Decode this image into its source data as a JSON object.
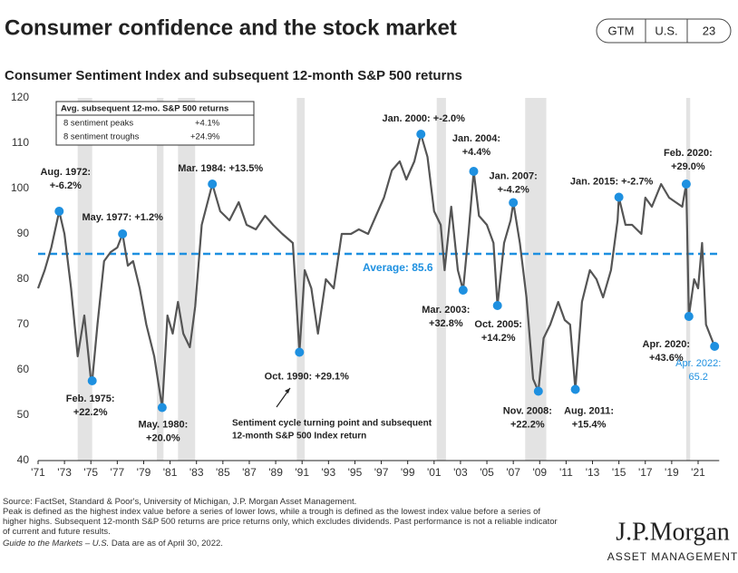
{
  "page": {
    "title": "Consumer confidence and the stock market",
    "tabs": [
      "GTM",
      "U.S.",
      "23"
    ],
    "footnotes": [
      "Source: FactSet, Standard & Poor's, University of Michigan, J.P. Morgan Asset Management.",
      "Peak is defined as the highest index value before a series of lower lows, while a trough is defined as the lowest index value before a series of",
      "higher highs. Subsequent 12-month S&P 500 returns are price returns only, which excludes dividends. Past performance is not a reliable indicator",
      "of current and future results."
    ],
    "guide": "Guide to the Markets – U.S.",
    "asof": " Data are as of April 30, 2022.",
    "logo": "J.P.Morgan",
    "logo_sub": "ASSET MANAGEMENT"
  },
  "chart_data": {
    "type": "line",
    "title": "Consumer Sentiment Index and subsequent 12-month S&P 500 returns",
    "color": "#555555",
    "point_color": "#1e90e0",
    "x": [
      1971.0,
      1971.5,
      1972.0,
      1972.6,
      1973.0,
      1973.5,
      1974.0,
      1974.5,
      1975.0,
      1975.1,
      1975.5,
      1976.0,
      1976.5,
      1977.0,
      1977.4,
      1977.8,
      1978.2,
      1978.7,
      1979.2,
      1979.8,
      1980.4,
      1980.8,
      1981.2,
      1981.6,
      1982.0,
      1982.5,
      1982.9,
      1983.4,
      1984.2,
      1984.8,
      1985.5,
      1986.2,
      1986.8,
      1987.5,
      1988.2,
      1988.8,
      1989.5,
      1990.3,
      1990.8,
      1991.2,
      1991.7,
      1992.2,
      1992.8,
      1993.4,
      1994.0,
      1994.7,
      1995.3,
      1996.0,
      1996.6,
      1997.2,
      1997.8,
      1998.4,
      1998.9,
      1999.5,
      2000.0,
      2000.5,
      2001.0,
      2001.5,
      2001.8,
      2002.3,
      2002.8,
      2003.2,
      2003.6,
      2004.0,
      2004.4,
      2005.0,
      2005.5,
      2005.8,
      2006.3,
      2006.8,
      2007.0,
      2007.5,
      2008.0,
      2008.5,
      2008.9,
      2009.3,
      2009.8,
      2010.4,
      2010.9,
      2011.3,
      2011.7,
      2012.2,
      2012.8,
      2013.3,
      2013.8,
      2014.4,
      2014.9,
      2015.0,
      2015.5,
      2016.0,
      2016.7,
      2017.0,
      2017.5,
      2018.2,
      2018.8,
      2019.3,
      2019.8,
      2020.1,
      2020.3,
      2020.7,
      2021.0,
      2021.3,
      2021.6,
      2022.0,
      2022.25
    ],
    "values": [
      78,
      82,
      87,
      95,
      90,
      78,
      63,
      72,
      58,
      57.6,
      70,
      84,
      86,
      87,
      90,
      83,
      84,
      78,
      70,
      63,
      51.7,
      72,
      68,
      75,
      68,
      65,
      74,
      92,
      101,
      95,
      93,
      97,
      92,
      91,
      94,
      92,
      90,
      88,
      63.9,
      82,
      78,
      68,
      80,
      78,
      90,
      90,
      91,
      90,
      94,
      98,
      104,
      106,
      102,
      106,
      112,
      107,
      95,
      92,
      82,
      96,
      82,
      77.6,
      90,
      103.8,
      94,
      92,
      88,
      74.2,
      88,
      93,
      96.9,
      88,
      76,
      58,
      55.3,
      67,
      70,
      75,
      71,
      70,
      55.7,
      75,
      82,
      80,
      76,
      82,
      93,
      98.1,
      92,
      92,
      90,
      98,
      96,
      101,
      98,
      97,
      96,
      101,
      71.8,
      80,
      78,
      88,
      70,
      67,
      65.2
    ],
    "points": [
      {
        "x": 1972.6,
        "y": 95,
        "lines": [
          "Aug. 1972:",
          "+-6.2%"
        ]
      },
      {
        "x": 1977.4,
        "y": 90,
        "lines": [
          "May. 1977: +1.2%"
        ]
      },
      {
        "x": 1975.1,
        "y": 57.6,
        "lines": [
          "Feb. 1975:",
          "+22.2%"
        ]
      },
      {
        "x": 1980.4,
        "y": 51.7,
        "lines": [
          "May. 1980:",
          "+20.0%"
        ]
      },
      {
        "x": 1984.2,
        "y": 101,
        "lines": [
          "Mar. 1984: +13.5%"
        ]
      },
      {
        "x": 1990.8,
        "y": 63.9,
        "lines": [
          "Oct. 1990: +29.1%"
        ]
      },
      {
        "x": 2000.0,
        "y": 112,
        "lines": [
          "Jan. 2000: +-2.0%"
        ]
      },
      {
        "x": 2004.0,
        "y": 103.8,
        "lines": [
          "Jan. 2004:",
          "+4.4%"
        ]
      },
      {
        "x": 2003.2,
        "y": 77.6,
        "lines": [
          "Mar. 2003:",
          "+32.8%"
        ]
      },
      {
        "x": 2005.8,
        "y": 74.2,
        "lines": [
          "Oct. 2005:",
          "+14.2%"
        ]
      },
      {
        "x": 2007.0,
        "y": 96.9,
        "lines": [
          "Jan. 2007:",
          "+-4.2%"
        ]
      },
      {
        "x": 2008.9,
        "y": 55.3,
        "lines": [
          "Nov. 2008:",
          "+22.2%"
        ]
      },
      {
        "x": 2011.7,
        "y": 55.7,
        "lines": [
          "Aug. 2011:",
          "+15.4%"
        ]
      },
      {
        "x": 2015.0,
        "y": 98.1,
        "lines": [
          "Jan. 2015: +-2.7%"
        ]
      },
      {
        "x": 2020.1,
        "y": 101,
        "lines": [
          "Feb. 2020:",
          "+29.0%"
        ]
      },
      {
        "x": 2020.3,
        "y": 71.8,
        "lines": [
          "Apr. 2020:",
          "+43.6%"
        ]
      },
      {
        "x": 2022.25,
        "y": 65.2,
        "lines": [
          "Apr. 2022:",
          "65.2"
        ]
      }
    ],
    "recessions": [
      [
        1974.0,
        1975.1
      ],
      [
        1980.0,
        1980.5
      ],
      [
        1981.6,
        1982.9
      ],
      [
        1990.6,
        1991.2
      ],
      [
        2001.2,
        2001.9
      ],
      [
        2007.9,
        2009.5
      ],
      [
        2020.1,
        2020.4
      ]
    ],
    "average": 85.6,
    "average_label": "Average: 85.6",
    "note": [
      "Sentiment cycle turning point and subsequent",
      "12-month S&P 500 Index return"
    ],
    "table": {
      "header": "Avg. subsequent 12-mo. S&P 500 returns",
      "rows": [
        [
          "8 sentiment peaks",
          "+4.1%"
        ],
        [
          "8 sentiment troughs",
          "+24.9%"
        ]
      ]
    },
    "xlim": [
      1971,
      2022.6
    ],
    "ylim": [
      40,
      120
    ],
    "yticks": [
      40,
      50,
      60,
      70,
      80,
      90,
      100,
      110,
      120
    ],
    "xticks": [
      {
        "value": 1971,
        "label": "'71"
      },
      {
        "value": 1973,
        "label": "'73"
      },
      {
        "value": 1975,
        "label": "'75"
      },
      {
        "value": 1977,
        "label": "'77"
      },
      {
        "value": 1979,
        "label": "'79"
      },
      {
        "value": 1981,
        "label": "'81"
      },
      {
        "value": 1983,
        "label": "'83"
      },
      {
        "value": 1985,
        "label": "'85"
      },
      {
        "value": 1987,
        "label": "'87"
      },
      {
        "value": 1989,
        "label": "'89"
      },
      {
        "value": 1991,
        "label": "'91"
      },
      {
        "value": 1993,
        "label": "'93"
      },
      {
        "value": 1995,
        "label": "'95"
      },
      {
        "value": 1997,
        "label": "'97"
      },
      {
        "value": 1999,
        "label": "'99"
      },
      {
        "value": 2001,
        "label": "'01"
      },
      {
        "value": 2003,
        "label": "'03"
      },
      {
        "value": 2005,
        "label": "'05"
      },
      {
        "value": 2007,
        "label": "'07"
      },
      {
        "value": 2009,
        "label": "'09"
      },
      {
        "value": 2011,
        "label": "'11"
      },
      {
        "value": 2013,
        "label": "'13"
      },
      {
        "value": 2015,
        "label": "'15"
      },
      {
        "value": 2017,
        "label": "'17"
      },
      {
        "value": 2019,
        "label": "'19"
      },
      {
        "value": 2021,
        "label": "'21"
      }
    ]
  }
}
